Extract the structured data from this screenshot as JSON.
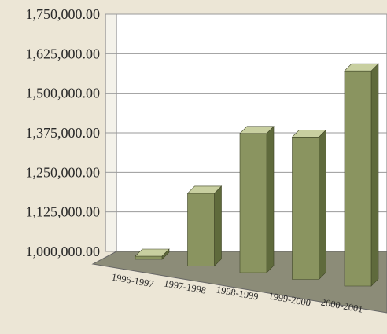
{
  "chart_data": {
    "type": "bar",
    "title": "",
    "xlabel": "",
    "ylabel": "",
    "categories": [
      "1996-1997",
      "1997-1998",
      "1998-1999",
      "1999-2000",
      "2000-2001"
    ],
    "values": [
      1010000,
      1230000,
      1440000,
      1450000,
      1680000
    ],
    "ylim": [
      1000000,
      1750000
    ],
    "yticks": [
      1000000,
      1125000,
      1250000,
      1375000,
      1500000,
      1625000,
      1750000
    ],
    "ytick_labels": [
      "1,000,000.00",
      "1,125,000.00",
      "1,250,000.00",
      "1,375,000.00",
      "1,500,000.00",
      "1,625,000.00",
      "1,750,000.00"
    ],
    "grid": true,
    "legend": "none",
    "style": "3d",
    "colors": {
      "bar_front": "#8a9460",
      "bar_top": "#c8cfa0",
      "bar_side": "#5f6a3c",
      "floor": "#8c8c78",
      "wall": "#ffffff",
      "text": "#2a2a2a"
    }
  }
}
